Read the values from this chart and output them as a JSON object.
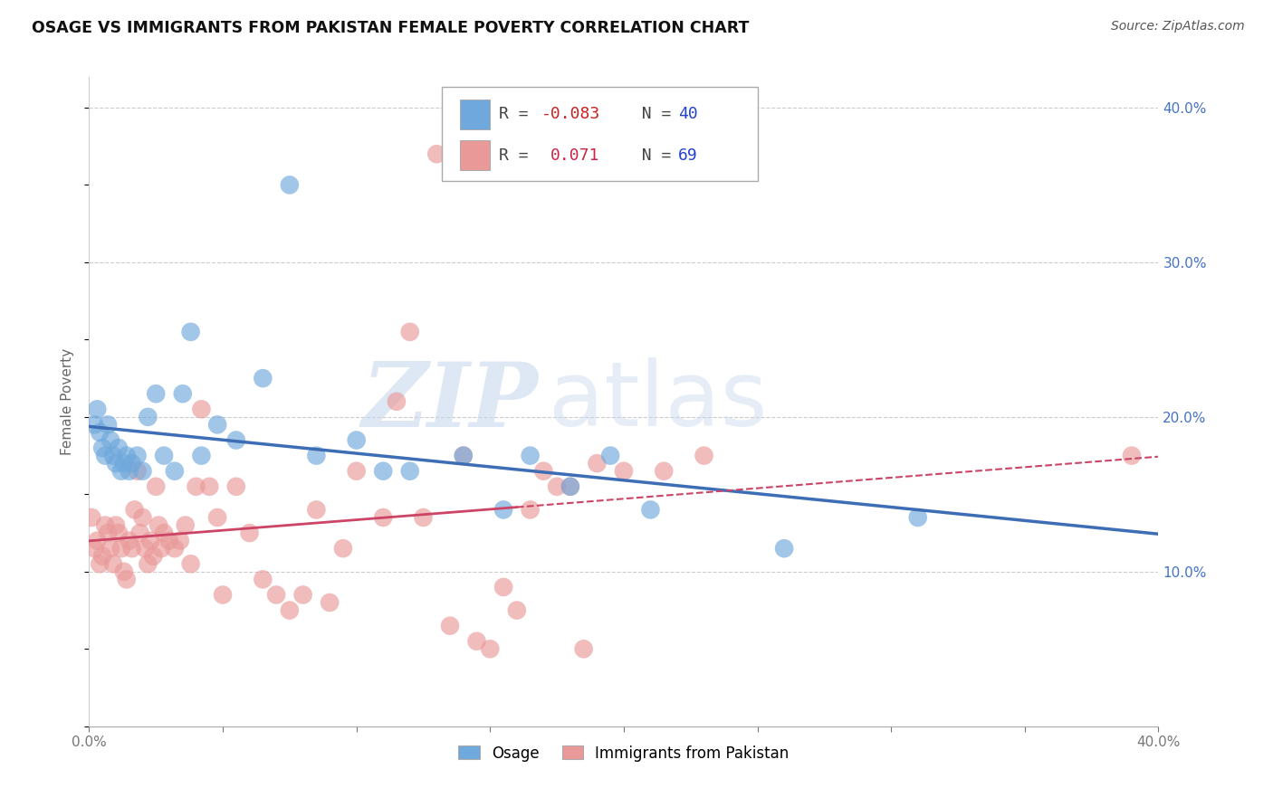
{
  "title": "OSAGE VS IMMIGRANTS FROM PAKISTAN FEMALE POVERTY CORRELATION CHART",
  "source": "Source: ZipAtlas.com",
  "ylabel": "Female Poverty",
  "xlim": [
    0.0,
    0.4
  ],
  "ylim": [
    0.0,
    0.42
  ],
  "xticks": [
    0.0,
    0.05,
    0.1,
    0.15,
    0.2,
    0.25,
    0.3,
    0.35,
    0.4
  ],
  "xtick_labels": [
    "0.0%",
    "",
    "",
    "",
    "",
    "",
    "",
    "",
    "40.0%"
  ],
  "yticks_right": [
    0.0,
    0.1,
    0.2,
    0.3,
    0.4
  ],
  "ytick_labels_right": [
    "",
    "10.0%",
    "20.0%",
    "30.0%",
    "40.0%"
  ],
  "watermark_zip": "ZIP",
  "watermark_atlas": "atlas",
  "legend1_R": "-0.083",
  "legend1_N": "40",
  "legend2_R": "0.071",
  "legend2_N": "69",
  "series1_name": "Osage",
  "series2_name": "Immigrants from Pakistan",
  "series1_color": "#6fa8dc",
  "series2_color": "#ea9999",
  "trendline1_color": "#3d6eb5",
  "trendline2_color": "#cc4466",
  "grid_color": "#cccccc",
  "osage_x": [
    0.002,
    0.003,
    0.004,
    0.005,
    0.006,
    0.007,
    0.008,
    0.009,
    0.01,
    0.011,
    0.012,
    0.013,
    0.014,
    0.015,
    0.016,
    0.018,
    0.02,
    0.022,
    0.025,
    0.028,
    0.032,
    0.035,
    0.038,
    0.042,
    0.048,
    0.055,
    0.065,
    0.075,
    0.085,
    0.1,
    0.11,
    0.12,
    0.14,
    0.155,
    0.165,
    0.18,
    0.195,
    0.21,
    0.26,
    0.31
  ],
  "osage_y": [
    0.195,
    0.205,
    0.19,
    0.18,
    0.175,
    0.195,
    0.185,
    0.175,
    0.17,
    0.18,
    0.165,
    0.17,
    0.175,
    0.165,
    0.17,
    0.175,
    0.165,
    0.2,
    0.215,
    0.175,
    0.165,
    0.215,
    0.255,
    0.175,
    0.195,
    0.185,
    0.225,
    0.35,
    0.175,
    0.185,
    0.165,
    0.165,
    0.175,
    0.14,
    0.175,
    0.155,
    0.175,
    0.14,
    0.115,
    0.135
  ],
  "pakistan_x": [
    0.001,
    0.002,
    0.003,
    0.004,
    0.005,
    0.006,
    0.007,
    0.008,
    0.009,
    0.01,
    0.011,
    0.012,
    0.013,
    0.014,
    0.015,
    0.016,
    0.017,
    0.018,
    0.019,
    0.02,
    0.021,
    0.022,
    0.023,
    0.024,
    0.025,
    0.026,
    0.027,
    0.028,
    0.03,
    0.032,
    0.034,
    0.036,
    0.038,
    0.04,
    0.042,
    0.045,
    0.048,
    0.05,
    0.055,
    0.06,
    0.065,
    0.07,
    0.075,
    0.08,
    0.085,
    0.09,
    0.095,
    0.1,
    0.11,
    0.115,
    0.12,
    0.125,
    0.13,
    0.135,
    0.14,
    0.145,
    0.15,
    0.155,
    0.16,
    0.165,
    0.17,
    0.175,
    0.18,
    0.185,
    0.19,
    0.2,
    0.215,
    0.23,
    0.39
  ],
  "pakistan_y": [
    0.135,
    0.115,
    0.12,
    0.105,
    0.11,
    0.13,
    0.125,
    0.115,
    0.105,
    0.13,
    0.125,
    0.115,
    0.1,
    0.095,
    0.12,
    0.115,
    0.14,
    0.165,
    0.125,
    0.135,
    0.115,
    0.105,
    0.12,
    0.11,
    0.155,
    0.13,
    0.115,
    0.125,
    0.12,
    0.115,
    0.12,
    0.13,
    0.105,
    0.155,
    0.205,
    0.155,
    0.135,
    0.085,
    0.155,
    0.125,
    0.095,
    0.085,
    0.075,
    0.085,
    0.14,
    0.08,
    0.115,
    0.165,
    0.135,
    0.21,
    0.255,
    0.135,
    0.37,
    0.065,
    0.175,
    0.055,
    0.05,
    0.09,
    0.075,
    0.14,
    0.165,
    0.155,
    0.155,
    0.05,
    0.17,
    0.165,
    0.165,
    0.175,
    0.175
  ],
  "trendline1_x_end": 0.4,
  "trendline2_solid_end": 0.16,
  "trendline2_x_end": 0.4
}
